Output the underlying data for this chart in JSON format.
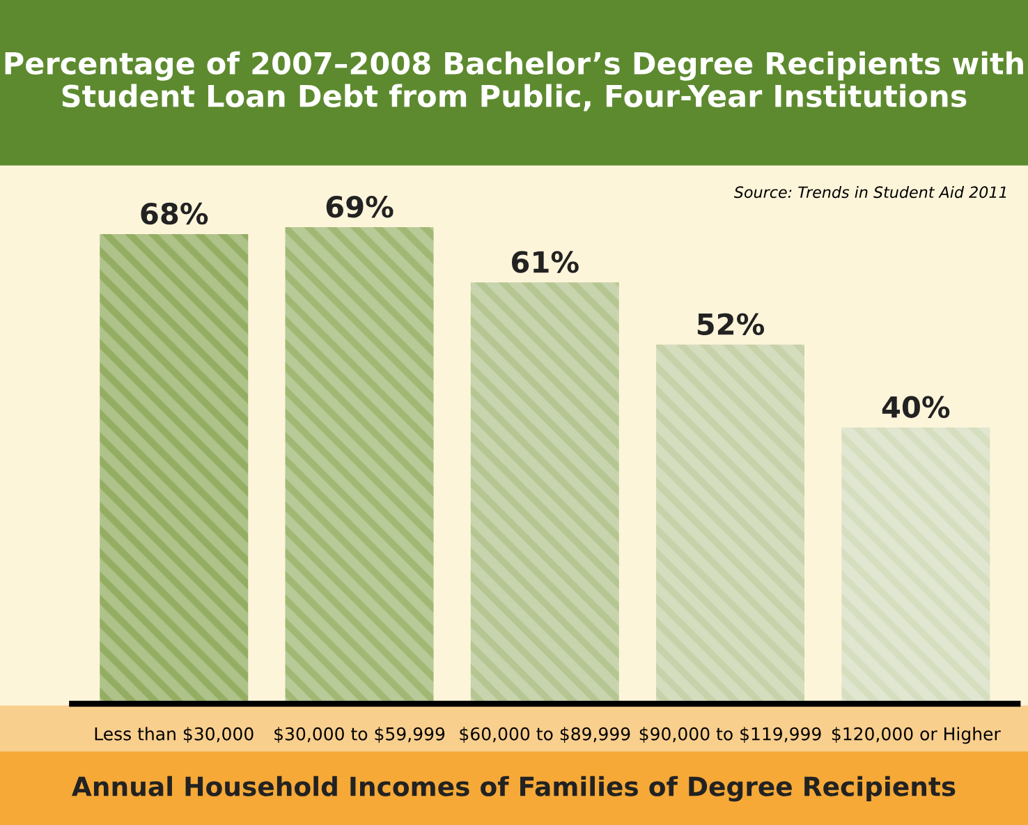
{
  "chart_data": {
    "type": "bar",
    "title": "Percentage of 2007–2008 Bachelor’s Degree Recipients with Student Loan Debt from Public, Four-Year Institutions",
    "xlabel": "Annual Household Incomes of Families of Degree Recipients",
    "categories": [
      "Less than $30,000",
      "$30,000 to $59,999",
      "$60,000 to $89,999",
      "$90,000 to $119,999",
      "$120,000 or Higher"
    ],
    "values": [
      68,
      69,
      61,
      52,
      40
    ],
    "colors": [
      "#93ad62",
      "#a0b874",
      "#b6c692",
      "#c7d2aa",
      "#d6dec0"
    ],
    "value_labels": [
      "68%",
      "69%",
      "61%",
      "52%",
      "40%"
    ],
    "annotations": [
      "Source: Trends in Student Aid 2011"
    ],
    "grid": false
  }
}
